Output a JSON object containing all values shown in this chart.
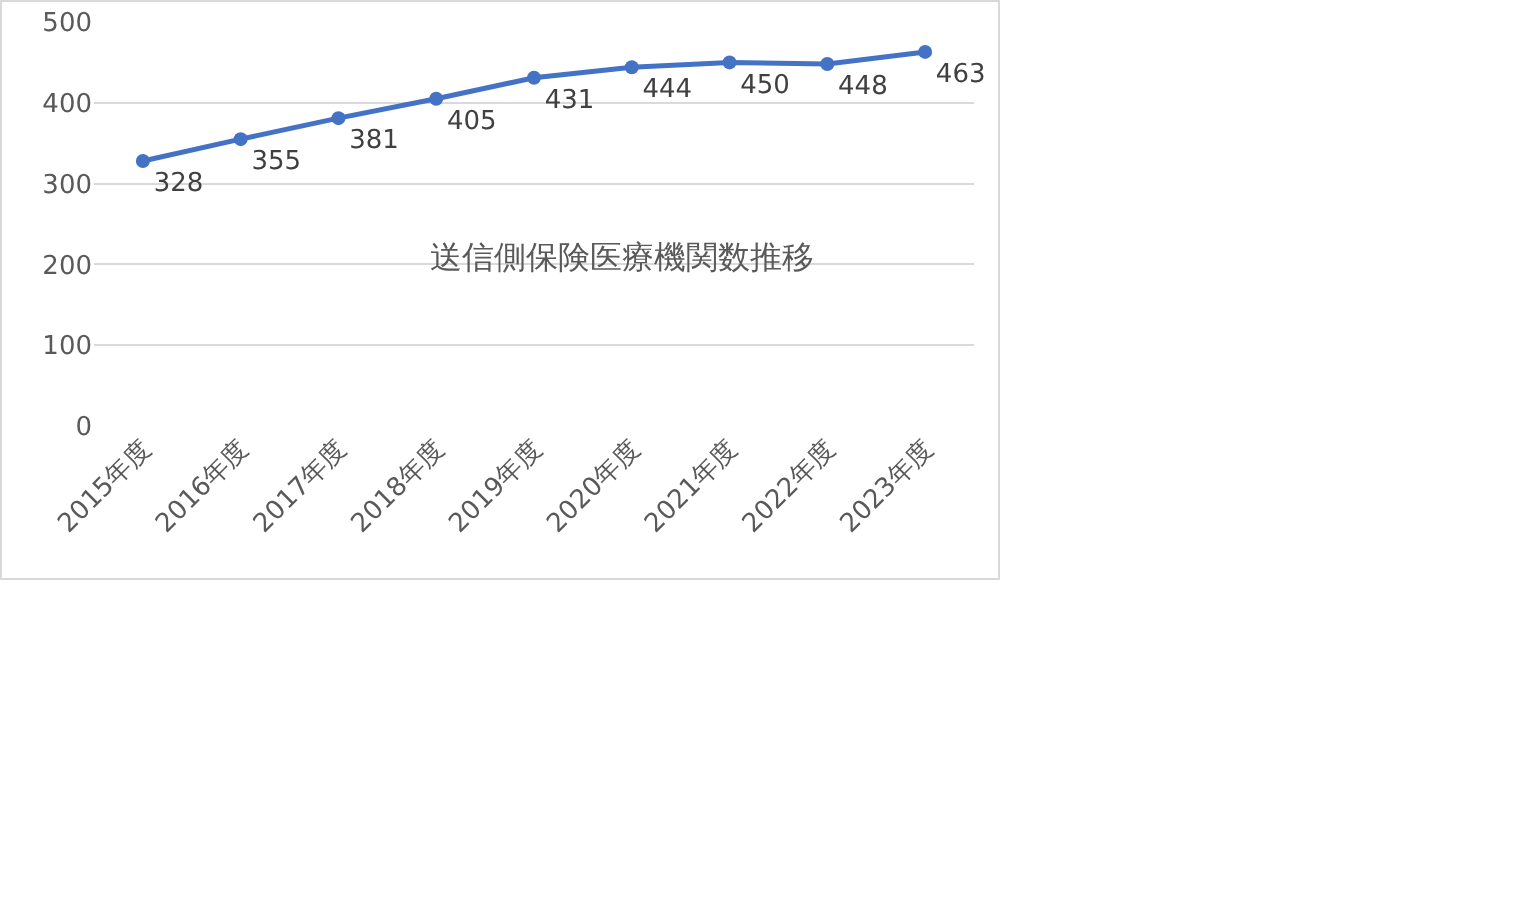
{
  "chart_data": {
    "type": "line",
    "title": "送信側保険医療機関数推移",
    "categories": [
      "2015年度",
      "2016年度",
      "2017年度",
      "2018年度",
      "2019年度",
      "2020年度",
      "2021年度",
      "2022年度",
      "2023年度"
    ],
    "series": [
      {
        "color": "#4472c4",
        "values": [
          328,
          355,
          381,
          405,
          431,
          444,
          450,
          448,
          463
        ]
      }
    ],
    "ylim": [
      0,
      500
    ],
    "yticks": [
      0,
      100,
      200,
      300,
      400,
      500
    ],
    "grid": "y",
    "legend": false,
    "marker": "circle",
    "line_style": "solid",
    "data_labels": true
  }
}
